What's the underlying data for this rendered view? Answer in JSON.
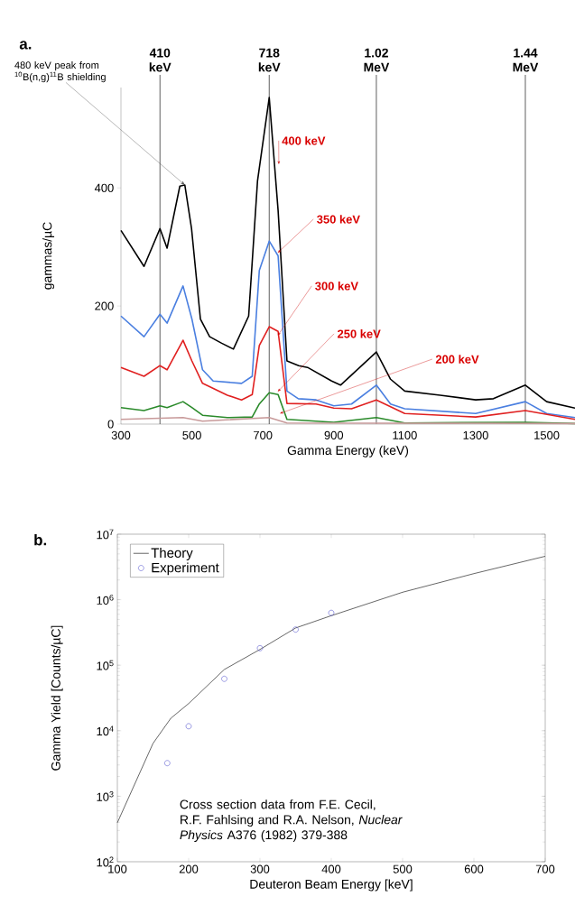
{
  "chart_data": [
    {
      "type": "line",
      "title": "a.",
      "xlabel": "Gamma Energy (keV)",
      "ylabel": "gammas/µC",
      "xlim": [
        300,
        1580
      ],
      "ylim": [
        0,
        570
      ],
      "xticks": [
        300,
        500,
        700,
        900,
        1100,
        1300,
        1500
      ],
      "yticks": [
        0,
        200,
        400
      ],
      "series": [
        {
          "name": "400 keV",
          "color": "#000000",
          "x": [
            300,
            365,
            410,
            430,
            466,
            480,
            499,
            524,
            550,
            584,
            617,
            660,
            685,
            718,
            743,
            768,
            801,
            826,
            894,
            919,
            1020,
            1060,
            1100,
            1200,
            1300,
            1350,
            1440,
            1500,
            1580
          ],
          "values": [
            328,
            267,
            331,
            298,
            403,
            405,
            331,
            178,
            148,
            137,
            127,
            183,
            412,
            553,
            362,
            107,
            99,
            96,
            73,
            66,
            122,
            76,
            56,
            49,
            41,
            43,
            66,
            38,
            27
          ]
        },
        {
          "name": "350 keV",
          "color": "#4a7fe0",
          "x": [
            300,
            365,
            410,
            430,
            475,
            500,
            530,
            560,
            640,
            670,
            690,
            718,
            743,
            768,
            800,
            850,
            900,
            950,
            1020,
            1060,
            1100,
            1300,
            1440,
            1500,
            1580
          ],
          "values": [
            183,
            148,
            186,
            171,
            234,
            178,
            92,
            73,
            69,
            81,
            260,
            310,
            285,
            56,
            43,
            41,
            31,
            34,
            66,
            34,
            26,
            18,
            38,
            18,
            11
          ]
        },
        {
          "name": "300 keV",
          "color": "#e02020",
          "x": [
            300,
            365,
            410,
            430,
            475,
            500,
            530,
            600,
            640,
            670,
            690,
            718,
            743,
            768,
            850,
            900,
            950,
            1020,
            1100,
            1300,
            1440,
            1580
          ],
          "values": [
            96,
            81,
            99,
            92,
            142,
            107,
            69,
            49,
            41,
            50,
            133,
            165,
            157,
            35,
            34,
            27,
            26,
            41,
            18,
            12,
            23,
            8
          ]
        },
        {
          "name": "250 keV",
          "color": "#2a8a2a",
          "x": [
            300,
            365,
            410,
            430,
            475,
            500,
            530,
            600,
            670,
            690,
            718,
            743,
            768,
            900,
            1020,
            1100,
            1440,
            1580
          ],
          "values": [
            28,
            23,
            31,
            28,
            38,
            28,
            15,
            11,
            12,
            34,
            53,
            50,
            8,
            3,
            11,
            2,
            3,
            1
          ]
        },
        {
          "name": "200 keV",
          "color": "#c89a9a",
          "x": [
            300,
            475,
            530,
            718,
            768,
            1580
          ],
          "values": [
            8,
            11,
            5,
            11,
            2,
            1
          ]
        }
      ],
      "ref_lines": [
        {
          "axis": "x",
          "value": 410,
          "label": "410 keV"
        },
        {
          "axis": "x",
          "value": 718,
          "label": "718 keV"
        },
        {
          "axis": "x",
          "value": 1020,
          "label": "1.02 MeV"
        },
        {
          "axis": "x",
          "value": 1440,
          "label": "1.44 MeV"
        }
      ],
      "annotations": [
        {
          "text": "480 keV peak from $^{10}$B(n,g)$^{11}$B shielding",
          "x": 480,
          "y": 405
        }
      ]
    },
    {
      "type": "line",
      "title": "b.",
      "xlabel": "Deuteron Beam Energy [keV]",
      "ylabel": "Gamma Yield [Counts/µC]",
      "log": "y",
      "legend": "top left",
      "xlim": [
        100,
        700
      ],
      "ylim": [
        100,
        10000000
      ],
      "xticks": [
        100,
        200,
        300,
        400,
        500,
        600,
        700
      ],
      "yticks": [
        {
          "value": 100,
          "label": "10$^{2}$"
        },
        {
          "value": 1000,
          "label": "10$^{3}$"
        },
        {
          "value": 10000,
          "label": "10$^{4}$"
        },
        {
          "value": 100000,
          "label": "10$^{5}$"
        },
        {
          "value": 1000000,
          "label": "10$^{6}$"
        },
        {
          "value": 10000000,
          "label": "10$^{7}$"
        }
      ],
      "series": [
        {
          "name": "Theory",
          "type": "line",
          "marker": "none",
          "color": "#404040",
          "x": [
            100,
            150,
            175,
            200,
            250,
            300,
            350,
            400,
            500,
            600,
            700
          ],
          "values": [
            394,
            6400,
            15500,
            26000,
            86000,
            174000,
            370000,
            570000,
            1300000,
            2500000,
            4600000
          ]
        },
        {
          "name": "Experiment",
          "type": "scatter",
          "marker": "circle",
          "color": "#5a5ad0",
          "x": [
            170,
            200,
            250,
            300,
            350,
            400
          ],
          "values": [
            3200,
            11700,
            62000,
            182000,
            350000,
            630000
          ]
        }
      ],
      "annotations": [
        "Cross section data from F.E. Cecil, R.F. Fahlsing and R.A. Nelson, *Nuclear Physics* A376 (1982) 379-388"
      ]
    }
  ]
}
